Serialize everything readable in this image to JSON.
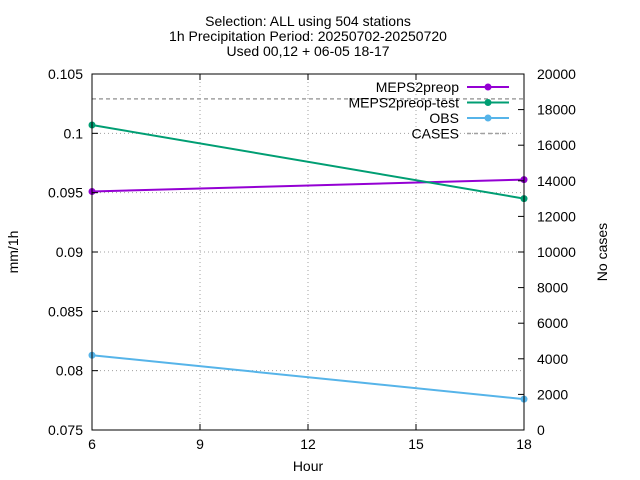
{
  "chart_data": {
    "type": "line",
    "title": [
      "Selection: ALL using   504 stations",
      "1h Precipitation   Period: 20250702-20250720",
      "Used 00,12 + 06-05 18-17"
    ],
    "xlabel": "Hour",
    "ylabel": "mm/1h",
    "y2label": "No cases",
    "xlim": [
      6,
      18
    ],
    "ylim": [
      0.075,
      0.105
    ],
    "y2lim": [
      0,
      20000
    ],
    "xticks": [
      "6",
      "9",
      "12",
      "15",
      "18"
    ],
    "yticks": [
      "0.075",
      "0.08",
      "0.085",
      "0.09",
      "0.095",
      "0.1",
      "0.105"
    ],
    "y2ticks": [
      "0",
      "2000",
      "4000",
      "6000",
      "8000",
      "10000",
      "12000",
      "14000",
      "16000",
      "18000",
      "20000"
    ],
    "grid": true,
    "legend_position": "top-right",
    "series": [
      {
        "name": "MEPS2preop",
        "axis": "y",
        "color": "#9400d3",
        "x": [
          6,
          18
        ],
        "values": [
          0.0951,
          0.0961
        ]
      },
      {
        "name": "MEPS2preop-test",
        "axis": "y",
        "color": "#009e73",
        "x": [
          6,
          18
        ],
        "values": [
          0.1007,
          0.0945
        ]
      },
      {
        "name": "OBS",
        "axis": "y",
        "color": "#56b4e9",
        "x": [
          6,
          18
        ],
        "values": [
          0.0813,
          0.0776
        ]
      },
      {
        "name": "CASES",
        "axis": "y2",
        "color": "#a0a0a0",
        "dashed": true,
        "x": [
          6,
          18
        ],
        "values": [
          18600,
          18600
        ]
      }
    ]
  }
}
